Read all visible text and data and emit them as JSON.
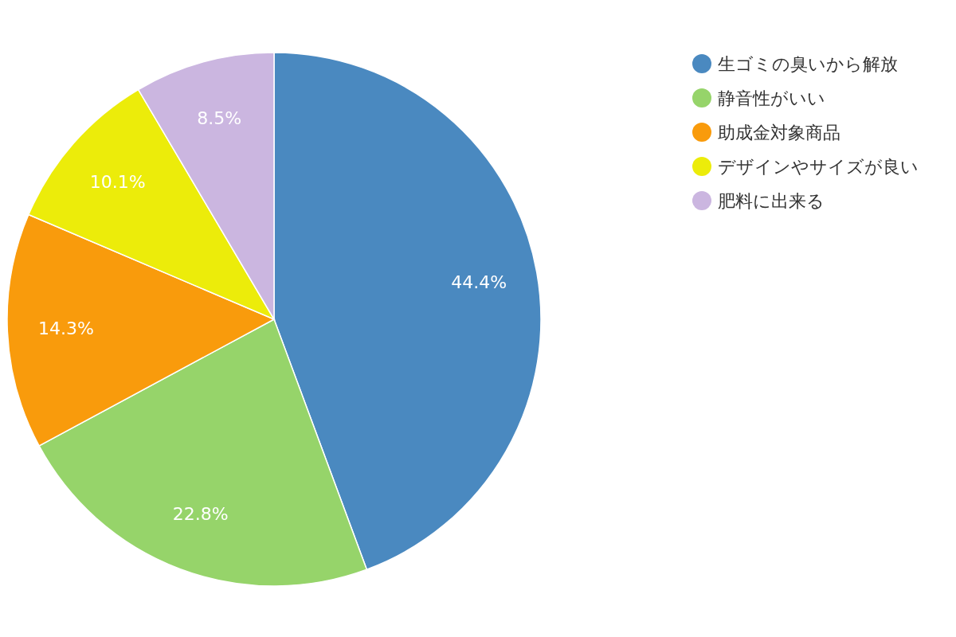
{
  "chart_data": {
    "type": "pie",
    "categories": [
      "生ゴミの臭いから解放",
      "静音性がいい",
      "助成金対象商品",
      "デザインやサイズが良い",
      "肥料に出来る"
    ],
    "values": [
      44.4,
      22.8,
      14.3,
      10.1,
      8.5
    ],
    "colors": [
      "#4a89c0",
      "#96d46a",
      "#f99b0c",
      "#ecec0a",
      "#cbb6e0"
    ],
    "value_labels": [
      "44.4%",
      "22.8%",
      "14.3%",
      "10.1%",
      "8.5%"
    ],
    "legend": "top right"
  }
}
